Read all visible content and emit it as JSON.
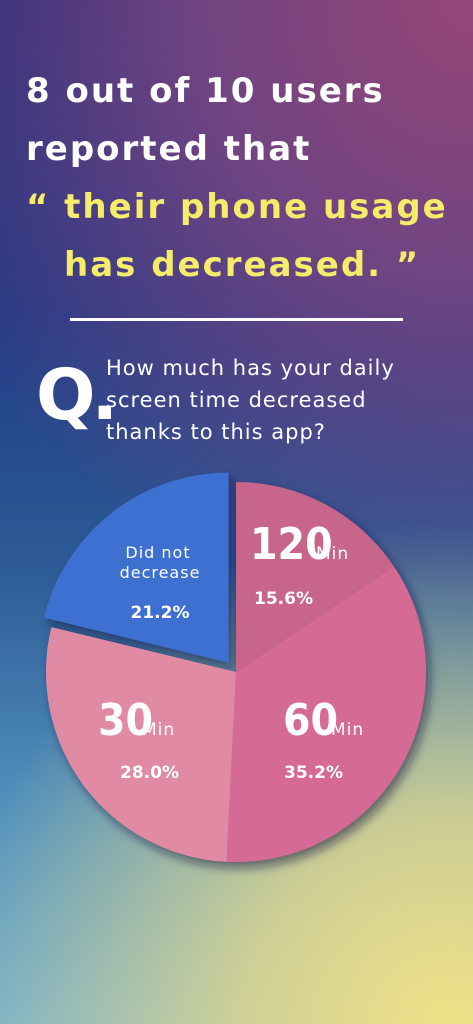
{
  "headline": {
    "line1": "8 out of 10 users",
    "line2": "reported that",
    "line3": "“ their phone usage",
    "line4": "has decreased.    ”"
  },
  "question": {
    "mark": "Q.",
    "text": "How much has your daily screen time decreased thanks to this app?"
  },
  "colors": {
    "headline_accent": "#f5ec6a",
    "slice_120": "#c7658a",
    "slice_60": "#d56b95",
    "slice_30": "#e08aa3",
    "slice_not": "#3e6fd0"
  },
  "chart_data": {
    "type": "pie",
    "title": "",
    "slices": [
      {
        "value_label": "120",
        "unit": "Min",
        "percent": 15.6,
        "percent_label": "15.6%"
      },
      {
        "value_label": "60",
        "unit": "Min",
        "percent": 35.2,
        "percent_label": "35.2%"
      },
      {
        "value_label": "30",
        "unit": "Min",
        "percent": 28.0,
        "percent_label": "28.0%"
      },
      {
        "label_line1": "Did not",
        "label_line2": "decrease",
        "percent": 21.2,
        "percent_label": "21.2%",
        "exploded": true
      }
    ]
  }
}
